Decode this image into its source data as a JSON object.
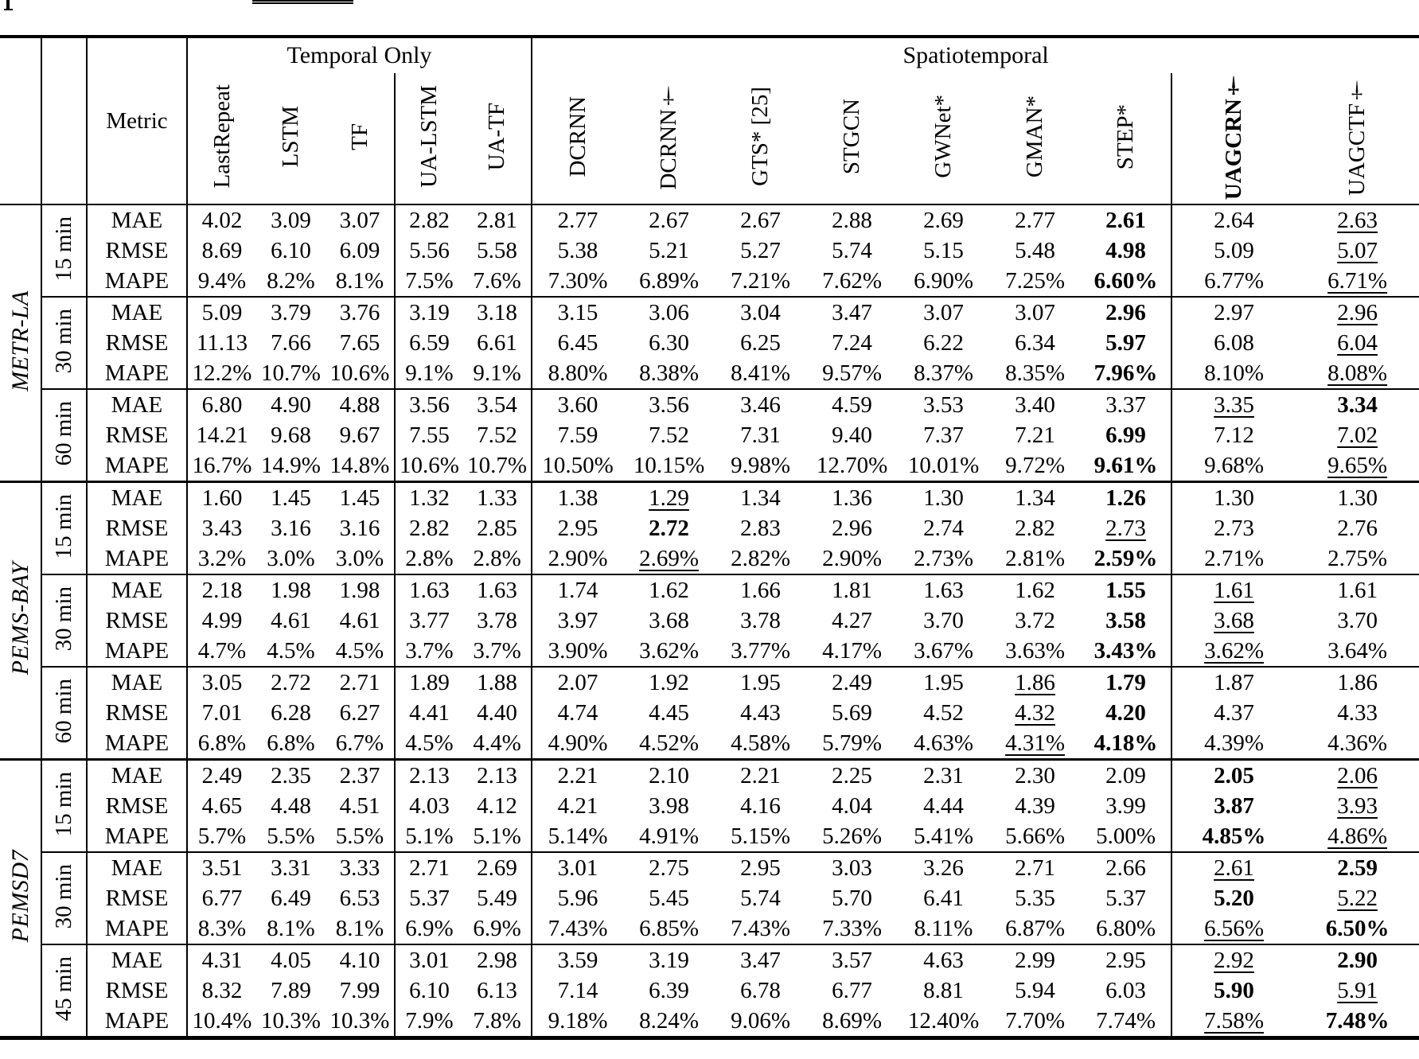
{
  "table": {
    "metric_header": "Metric",
    "groups": [
      {
        "label": "Temporal Only",
        "span": 5
      },
      {
        "label": "Spatiotemporal",
        "span": 9
      }
    ],
    "models": [
      "LastRepeat",
      "LSTM",
      "TF",
      "UA-LSTM",
      "UA-TF",
      "DCRNN",
      "DCRNN†",
      "GTS* [25]",
      "STGCN",
      "GWNet*",
      "GMAN*",
      "STEP*",
      "UAGCRN†",
      "UAGCTF†"
    ],
    "bold_model_index": 12,
    "sections": [
      {
        "dataset": "METR-LA",
        "horizons": [
          {
            "label": "15 min",
            "rows": [
              {
                "metric": "MAE",
                "values": [
                  "4.02",
                  "3.09",
                  "3.07",
                  "2.82",
                  "2.81",
                  "2.77",
                  "2.67",
                  "2.67",
                  "2.88",
                  "2.69",
                  "2.77",
                  "2.61",
                  "2.64",
                  "2.63"
                ],
                "bold": [
                  11
                ],
                "underline": [
                  13
                ]
              },
              {
                "metric": "RMSE",
                "values": [
                  "8.69",
                  "6.10",
                  "6.09",
                  "5.56",
                  "5.58",
                  "5.38",
                  "5.21",
                  "5.27",
                  "5.74",
                  "5.15",
                  "5.48",
                  "4.98",
                  "5.09",
                  "5.07"
                ],
                "bold": [
                  11
                ],
                "underline": [
                  13
                ]
              },
              {
                "metric": "MAPE",
                "values": [
                  "9.4%",
                  "8.2%",
                  "8.1%",
                  "7.5%",
                  "7.6%",
                  "7.30%",
                  "6.89%",
                  "7.21%",
                  "7.62%",
                  "6.90%",
                  "7.25%",
                  "6.60%",
                  "6.77%",
                  "6.71%"
                ],
                "bold": [
                  11
                ],
                "underline": [
                  13
                ]
              }
            ]
          },
          {
            "label": "30 min",
            "rows": [
              {
                "metric": "MAE",
                "values": [
                  "5.09",
                  "3.79",
                  "3.76",
                  "3.19",
                  "3.18",
                  "3.15",
                  "3.06",
                  "3.04",
                  "3.47",
                  "3.07",
                  "3.07",
                  "2.96",
                  "2.97",
                  "2.96"
                ],
                "bold": [
                  11
                ],
                "underline": [
                  13
                ]
              },
              {
                "metric": "RMSE",
                "values": [
                  "11.13",
                  "7.66",
                  "7.65",
                  "6.59",
                  "6.61",
                  "6.45",
                  "6.30",
                  "6.25",
                  "7.24",
                  "6.22",
                  "6.34",
                  "5.97",
                  "6.08",
                  "6.04"
                ],
                "bold": [
                  11
                ],
                "underline": [
                  13
                ]
              },
              {
                "metric": "MAPE",
                "values": [
                  "12.2%",
                  "10.7%",
                  "10.6%",
                  "9.1%",
                  "9.1%",
                  "8.80%",
                  "8.38%",
                  "8.41%",
                  "9.57%",
                  "8.37%",
                  "8.35%",
                  "7.96%",
                  "8.10%",
                  "8.08%"
                ],
                "bold": [
                  11
                ],
                "underline": [
                  13
                ]
              }
            ]
          },
          {
            "label": "60 min",
            "rows": [
              {
                "metric": "MAE",
                "values": [
                  "6.80",
                  "4.90",
                  "4.88",
                  "3.56",
                  "3.54",
                  "3.60",
                  "3.56",
                  "3.46",
                  "4.59",
                  "3.53",
                  "3.40",
                  "3.37",
                  "3.35",
                  "3.34"
                ],
                "bold": [
                  13
                ],
                "underline": [
                  12
                ]
              },
              {
                "metric": "RMSE",
                "values": [
                  "14.21",
                  "9.68",
                  "9.67",
                  "7.55",
                  "7.52",
                  "7.59",
                  "7.52",
                  "7.31",
                  "9.40",
                  "7.37",
                  "7.21",
                  "6.99",
                  "7.12",
                  "7.02"
                ],
                "bold": [
                  11
                ],
                "underline": [
                  13
                ]
              },
              {
                "metric": "MAPE",
                "values": [
                  "16.7%",
                  "14.9%",
                  "14.8%",
                  "10.6%",
                  "10.7%",
                  "10.50%",
                  "10.15%",
                  "9.98%",
                  "12.70%",
                  "10.01%",
                  "9.72%",
                  "9.61%",
                  "9.68%",
                  "9.65%"
                ],
                "bold": [
                  11
                ],
                "underline": [
                  13
                ]
              }
            ]
          }
        ]
      },
      {
        "dataset": "PEMS-BAY",
        "horizons": [
          {
            "label": "15 min",
            "rows": [
              {
                "metric": "MAE",
                "values": [
                  "1.60",
                  "1.45",
                  "1.45",
                  "1.32",
                  "1.33",
                  "1.38",
                  "1.29",
                  "1.34",
                  "1.36",
                  "1.30",
                  "1.34",
                  "1.26",
                  "1.30",
                  "1.30"
                ],
                "bold": [
                  11
                ],
                "underline": [
                  6
                ]
              },
              {
                "metric": "RMSE",
                "values": [
                  "3.43",
                  "3.16",
                  "3.16",
                  "2.82",
                  "2.85",
                  "2.95",
                  "2.72",
                  "2.83",
                  "2.96",
                  "2.74",
                  "2.82",
                  "2.73",
                  "2.73",
                  "2.76"
                ],
                "bold": [
                  6
                ],
                "underline": [
                  11
                ]
              },
              {
                "metric": "MAPE",
                "values": [
                  "3.2%",
                  "3.0%",
                  "3.0%",
                  "2.8%",
                  "2.8%",
                  "2.90%",
                  "2.69%",
                  "2.82%",
                  "2.90%",
                  "2.73%",
                  "2.81%",
                  "2.59%",
                  "2.71%",
                  "2.75%"
                ],
                "bold": [
                  11
                ],
                "underline": [
                  6
                ]
              }
            ]
          },
          {
            "label": "30 min",
            "rows": [
              {
                "metric": "MAE",
                "values": [
                  "2.18",
                  "1.98",
                  "1.98",
                  "1.63",
                  "1.63",
                  "1.74",
                  "1.62",
                  "1.66",
                  "1.81",
                  "1.63",
                  "1.62",
                  "1.55",
                  "1.61",
                  "1.61"
                ],
                "bold": [
                  11
                ],
                "underline": [
                  12
                ]
              },
              {
                "metric": "RMSE",
                "values": [
                  "4.99",
                  "4.61",
                  "4.61",
                  "3.77",
                  "3.78",
                  "3.97",
                  "3.68",
                  "3.78",
                  "4.27",
                  "3.70",
                  "3.72",
                  "3.58",
                  "3.68",
                  "3.70"
                ],
                "bold": [
                  11
                ],
                "underline": [
                  12
                ]
              },
              {
                "metric": "MAPE",
                "values": [
                  "4.7%",
                  "4.5%",
                  "4.5%",
                  "3.7%",
                  "3.7%",
                  "3.90%",
                  "3.62%",
                  "3.77%",
                  "4.17%",
                  "3.67%",
                  "3.63%",
                  "3.43%",
                  "3.62%",
                  "3.64%"
                ],
                "bold": [
                  11
                ],
                "underline": [
                  12
                ]
              }
            ]
          },
          {
            "label": "60 min",
            "rows": [
              {
                "metric": "MAE",
                "values": [
                  "3.05",
                  "2.72",
                  "2.71",
                  "1.89",
                  "1.88",
                  "2.07",
                  "1.92",
                  "1.95",
                  "2.49",
                  "1.95",
                  "1.86",
                  "1.79",
                  "1.87",
                  "1.86"
                ],
                "bold": [
                  11
                ],
                "underline": [
                  10
                ]
              },
              {
                "metric": "RMSE",
                "values": [
                  "7.01",
                  "6.28",
                  "6.27",
                  "4.41",
                  "4.40",
                  "4.74",
                  "4.45",
                  "4.43",
                  "5.69",
                  "4.52",
                  "4.32",
                  "4.20",
                  "4.37",
                  "4.33"
                ],
                "bold": [
                  11
                ],
                "underline": [
                  10
                ]
              },
              {
                "metric": "MAPE",
                "values": [
                  "6.8%",
                  "6.8%",
                  "6.7%",
                  "4.5%",
                  "4.4%",
                  "4.90%",
                  "4.52%",
                  "4.58%",
                  "5.79%",
                  "4.63%",
                  "4.31%",
                  "4.18%",
                  "4.39%",
                  "4.36%"
                ],
                "bold": [
                  11
                ],
                "underline": [
                  10
                ]
              }
            ]
          }
        ]
      },
      {
        "dataset": "PEMSD7",
        "horizons": [
          {
            "label": "15 min",
            "rows": [
              {
                "metric": "MAE",
                "values": [
                  "2.49",
                  "2.35",
                  "2.37",
                  "2.13",
                  "2.13",
                  "2.21",
                  "2.10",
                  "2.21",
                  "2.25",
                  "2.31",
                  "2.30",
                  "2.09",
                  "2.05",
                  "2.06"
                ],
                "bold": [
                  12
                ],
                "underline": [
                  13
                ]
              },
              {
                "metric": "RMSE",
                "values": [
                  "4.65",
                  "4.48",
                  "4.51",
                  "4.03",
                  "4.12",
                  "4.21",
                  "3.98",
                  "4.16",
                  "4.04",
                  "4.44",
                  "4.39",
                  "3.99",
                  "3.87",
                  "3.93"
                ],
                "bold": [
                  12
                ],
                "underline": [
                  13
                ]
              },
              {
                "metric": "MAPE",
                "values": [
                  "5.7%",
                  "5.5%",
                  "5.5%",
                  "5.1%",
                  "5.1%",
                  "5.14%",
                  "4.91%",
                  "5.15%",
                  "5.26%",
                  "5.41%",
                  "5.66%",
                  "5.00%",
                  "4.85%",
                  "4.86%"
                ],
                "bold": [
                  12
                ],
                "underline": [
                  13
                ]
              }
            ]
          },
          {
            "label": "30 min",
            "rows": [
              {
                "metric": "MAE",
                "values": [
                  "3.51",
                  "3.31",
                  "3.33",
                  "2.71",
                  "2.69",
                  "3.01",
                  "2.75",
                  "2.95",
                  "3.03",
                  "3.26",
                  "2.71",
                  "2.66",
                  "2.61",
                  "2.59"
                ],
                "bold": [
                  13
                ],
                "underline": [
                  12
                ]
              },
              {
                "metric": "RMSE",
                "values": [
                  "6.77",
                  "6.49",
                  "6.53",
                  "5.37",
                  "5.49",
                  "5.96",
                  "5.45",
                  "5.74",
                  "5.70",
                  "6.41",
                  "5.35",
                  "5.37",
                  "5.20",
                  "5.22"
                ],
                "bold": [
                  12
                ],
                "underline": [
                  13
                ]
              },
              {
                "metric": "MAPE",
                "values": [
                  "8.3%",
                  "8.1%",
                  "8.1%",
                  "6.9%",
                  "6.9%",
                  "7.43%",
                  "6.85%",
                  "7.43%",
                  "7.33%",
                  "8.11%",
                  "6.87%",
                  "6.80%",
                  "6.56%",
                  "6.50%"
                ],
                "bold": [
                  13
                ],
                "underline": [
                  12
                ]
              }
            ]
          },
          {
            "label": "45 min",
            "rows": [
              {
                "metric": "MAE",
                "values": [
                  "4.31",
                  "4.05",
                  "4.10",
                  "3.01",
                  "2.98",
                  "3.59",
                  "3.19",
                  "3.47",
                  "3.57",
                  "4.63",
                  "2.99",
                  "2.95",
                  "2.92",
                  "2.90"
                ],
                "bold": [
                  13
                ],
                "underline": [
                  12
                ]
              },
              {
                "metric": "RMSE",
                "values": [
                  "8.32",
                  "7.89",
                  "7.99",
                  "6.10",
                  "6.13",
                  "7.14",
                  "6.39",
                  "6.78",
                  "6.77",
                  "8.81",
                  "5.94",
                  "6.03",
                  "5.90",
                  "5.91"
                ],
                "bold": [
                  12
                ],
                "underline": [
                  13
                ]
              },
              {
                "metric": "MAPE",
                "values": [
                  "10.4%",
                  "10.3%",
                  "10.3%",
                  "7.9%",
                  "7.8%",
                  "9.18%",
                  "8.24%",
                  "9.06%",
                  "8.69%",
                  "12.40%",
                  "7.70%",
                  "7.74%",
                  "7.58%",
                  "7.48%"
                ],
                "bold": [
                  13
                ],
                "underline": [
                  12
                ]
              }
            ]
          }
        ]
      }
    ]
  }
}
